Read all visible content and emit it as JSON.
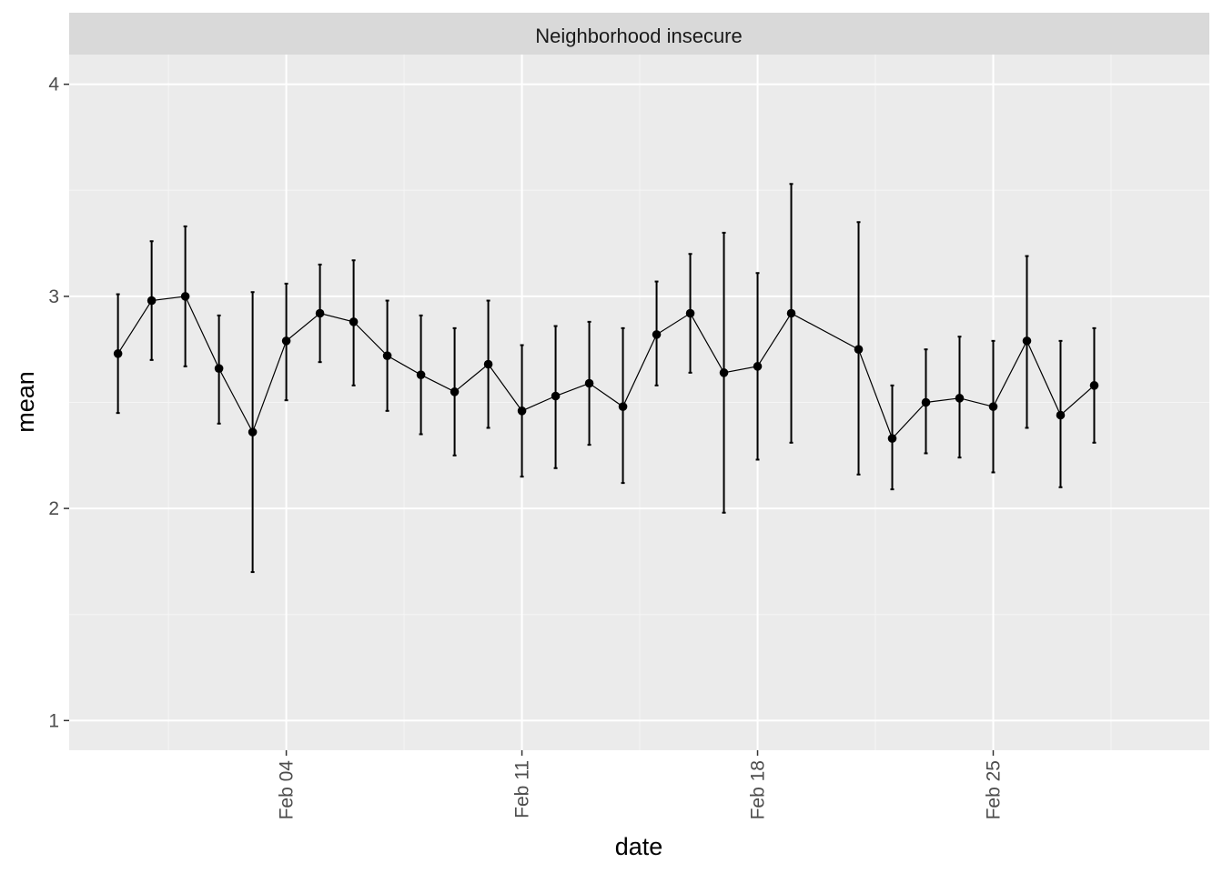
{
  "chart_data": {
    "type": "line",
    "panel_title": "Neighborhood insecure",
    "xlabel": "date",
    "ylabel": "mean",
    "x_ticks": [
      {
        "date": "2024-02-04",
        "label": "Feb 04"
      },
      {
        "date": "2024-02-11",
        "label": "Feb 11"
      },
      {
        "date": "2024-02-18",
        "label": "Feb 18"
      },
      {
        "date": "2024-02-25",
        "label": "Feb 25"
      }
    ],
    "y_ticks": [
      1,
      2,
      3,
      4
    ],
    "ylim": [
      0.86,
      4.14
    ],
    "xlim": [
      "2024-01-28",
      "2024-03-03"
    ],
    "grid": true,
    "series": [
      {
        "points": [
          {
            "date": "2024-01-30",
            "mean": 2.73,
            "lower": 2.45,
            "upper": 3.01
          },
          {
            "date": "2024-01-31",
            "mean": 2.98,
            "lower": 2.7,
            "upper": 3.26
          },
          {
            "date": "2024-02-01",
            "mean": 3.0,
            "lower": 2.67,
            "upper": 3.33
          },
          {
            "date": "2024-02-02",
            "mean": 2.66,
            "lower": 2.4,
            "upper": 2.91
          },
          {
            "date": "2024-02-03",
            "mean": 2.36,
            "lower": 1.7,
            "upper": 3.02
          },
          {
            "date": "2024-02-04",
            "mean": 2.79,
            "lower": 2.51,
            "upper": 3.06
          },
          {
            "date": "2024-02-05",
            "mean": 2.92,
            "lower": 2.69,
            "upper": 3.15
          },
          {
            "date": "2024-02-06",
            "mean": 2.88,
            "lower": 2.58,
            "upper": 3.17
          },
          {
            "date": "2024-02-07",
            "mean": 2.72,
            "lower": 2.46,
            "upper": 2.98
          },
          {
            "date": "2024-02-08",
            "mean": 2.63,
            "lower": 2.35,
            "upper": 2.91
          },
          {
            "date": "2024-02-09",
            "mean": 2.55,
            "lower": 2.25,
            "upper": 2.85
          },
          {
            "date": "2024-02-10",
            "mean": 2.68,
            "lower": 2.38,
            "upper": 2.98
          },
          {
            "date": "2024-02-11",
            "mean": 2.46,
            "lower": 2.15,
            "upper": 2.77
          },
          {
            "date": "2024-02-12",
            "mean": 2.53,
            "lower": 2.19,
            "upper": 2.86
          },
          {
            "date": "2024-02-13",
            "mean": 2.59,
            "lower": 2.3,
            "upper": 2.88
          },
          {
            "date": "2024-02-14",
            "mean": 2.48,
            "lower": 2.12,
            "upper": 2.85
          },
          {
            "date": "2024-02-15",
            "mean": 2.82,
            "lower": 2.58,
            "upper": 3.07
          },
          {
            "date": "2024-02-16",
            "mean": 2.92,
            "lower": 2.64,
            "upper": 3.2
          },
          {
            "date": "2024-02-17",
            "mean": 2.64,
            "lower": 1.98,
            "upper": 3.3
          },
          {
            "date": "2024-02-18",
            "mean": 2.67,
            "lower": 2.23,
            "upper": 3.11
          },
          {
            "date": "2024-02-19",
            "mean": 2.92,
            "lower": 2.31,
            "upper": 3.53
          },
          {
            "date": "2024-02-21",
            "mean": 2.75,
            "lower": 2.16,
            "upper": 3.35
          },
          {
            "date": "2024-02-22",
            "mean": 2.33,
            "lower": 2.09,
            "upper": 2.58
          },
          {
            "date": "2024-02-23",
            "mean": 2.5,
            "lower": 2.26,
            "upper": 2.75
          },
          {
            "date": "2024-02-24",
            "mean": 2.52,
            "lower": 2.24,
            "upper": 2.81
          },
          {
            "date": "2024-02-25",
            "mean": 2.48,
            "lower": 2.17,
            "upper": 2.79
          },
          {
            "date": "2024-02-26",
            "mean": 2.79,
            "lower": 2.38,
            "upper": 3.19
          },
          {
            "date": "2024-02-27",
            "mean": 2.44,
            "lower": 2.1,
            "upper": 2.79
          },
          {
            "date": "2024-02-28",
            "mean": 2.58,
            "lower": 2.31,
            "upper": 2.85
          }
        ]
      }
    ]
  },
  "colors": {
    "panel_background": "#ebebeb",
    "strip_background": "#d9d9d9",
    "grid_major": "#ffffff",
    "grid_minor": "#f5f5f5",
    "data": "#000000",
    "tick_label": "#4d4d4d"
  }
}
